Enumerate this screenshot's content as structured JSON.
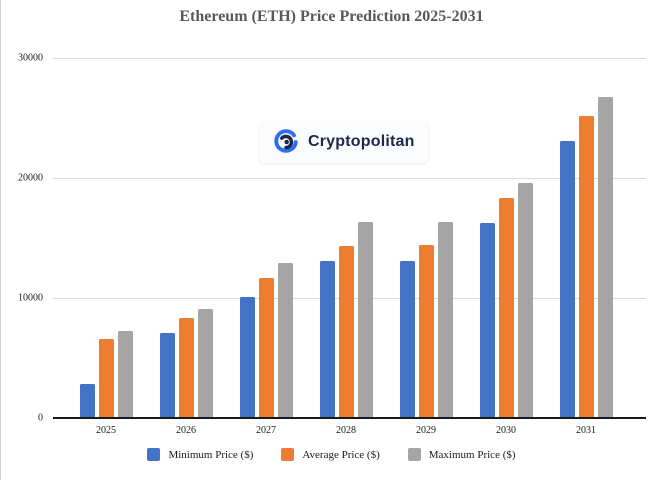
{
  "page": {
    "background": "#ffffff",
    "border_color": "#cccccc"
  },
  "chart_data": {
    "type": "bar",
    "title": "Ethereum (ETH) Price Prediction 2025-2031",
    "title_color": "#595959",
    "xlabel": "",
    "ylabel": "",
    "categories": [
      "2025",
      "2026",
      "2027",
      "2028",
      "2029",
      "2030",
      "2031"
    ],
    "series": [
      {
        "name": "Minimum Price ($)",
        "color": "#4472C4",
        "values": [
          2800,
          7100,
          10050,
          13050,
          13100,
          16250,
          23050
        ]
      },
      {
        "name": "Average Price ($)",
        "color": "#ED7D31",
        "values": [
          6550,
          8350,
          11700,
          14300,
          14450,
          18350,
          25200
        ]
      },
      {
        "name": "Maximum Price ($)",
        "color": "#A5A5A5",
        "values": [
          7275,
          9100,
          12900,
          16300,
          16350,
          19550,
          26750
        ]
      }
    ],
    "ylim": [
      0,
      30000
    ],
    "y_ticks": [
      0,
      10000,
      20000,
      30000
    ],
    "grid": true,
    "gridline_color": "#d9d9d9",
    "axis_line_color": "#1a1a1a",
    "legend_position": "bottom"
  },
  "watermark": {
    "text": "Cryptopolitan",
    "icon": "cryptopolitan-logo",
    "text_color": "#1c2749",
    "logo_blue": "#2e6bf0",
    "logo_navy": "#1c2749"
  }
}
